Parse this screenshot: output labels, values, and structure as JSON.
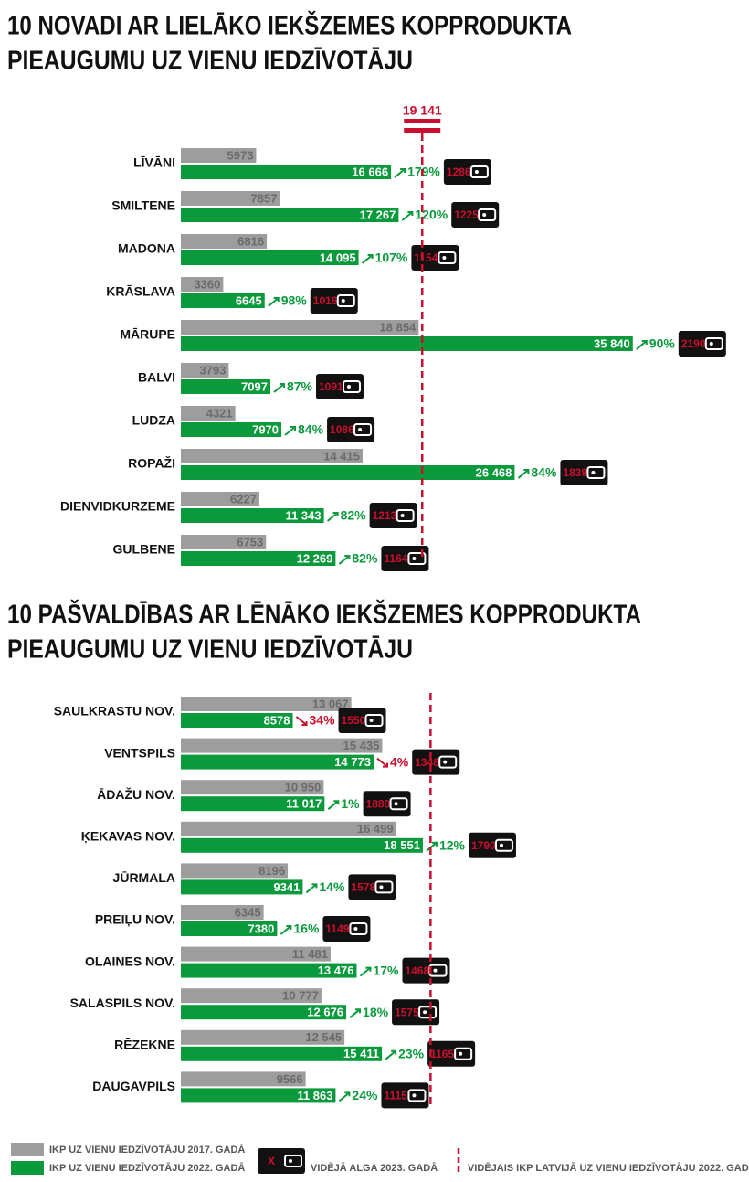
{
  "chart_data": [
    {
      "type": "bar",
      "title": [
        "10 NOVADI AR LIELĀKO IEKŠZEMES KOPPRODUKTA",
        "PIEAUGUMU UZ VIENU IEDZĪVOTĀJU"
      ],
      "categories": [
        "LĪVĀNI",
        "SMILTENE",
        "MADONA",
        "KRĀSLAVA",
        "MĀRUPE",
        "BALVI",
        "LUDZA",
        "ROPAŽI",
        "DIENVIDKURZEME",
        "GULBENE"
      ],
      "series": [
        {
          "name": "IKP UZ VIENU IEDZĪVOTĀJU 2017. GADĀ",
          "color": "#9d9d9d",
          "values": [
            5973,
            7857,
            6816,
            3360,
            18854,
            3793,
            4321,
            14415,
            6227,
            6753
          ],
          "value_labels": [
            "5973",
            "7857",
            "6816",
            "3360",
            "18 854",
            "3793",
            "4321",
            "14 415",
            "6227",
            "6753"
          ]
        },
        {
          "name": "IKP UZ VIENU IEDZĪVOTĀJU 2022. GADĀ",
          "color": "#0a9a3c",
          "values": [
            16666,
            17267,
            14095,
            6645,
            35840,
            7097,
            7970,
            26468,
            11343,
            12269
          ],
          "value_labels": [
            "16 666",
            "17 267",
            "14 095",
            "6645",
            "35 840",
            "7097",
            "7970",
            "26 468",
            "11 343",
            "12 269"
          ]
        }
      ],
      "growth": {
        "values": [
          179,
          120,
          107,
          98,
          90,
          87,
          84,
          84,
          82,
          82
        ],
        "value_labels": [
          "179%",
          "120%",
          "107%",
          "98%",
          "90%",
          "87%",
          "84%",
          "84%",
          "82%",
          "82%"
        ]
      },
      "wages": {
        "values": [
          1286,
          1225,
          1154,
          1016,
          2190,
          1091,
          1086,
          1839,
          1213,
          1164
        ]
      },
      "reference": {
        "value": 19141,
        "label": "19 141"
      },
      "xlim": [
        0,
        36000
      ]
    },
    {
      "type": "bar",
      "title": [
        "10 PAŠVALDĪBAS AR LĒNĀKO IEKŠZEMES KOPPRODUKTA",
        "PIEAUGUMU UZ VIENU IEDZĪVOTĀJU"
      ],
      "categories": [
        "SAULKRASTU NOV.",
        "VENTSPILS",
        "ĀDAŽU NOV.",
        "ĶEKAVAS NOV.",
        "JŪRMALA",
        "PREIĻU NOV.",
        "OLAINES NOV.",
        "SALASPILS NOV.",
        "RĒZEKNE",
        "DAUGAVPILS"
      ],
      "series": [
        {
          "color": "#9d9d9d",
          "values": [
            13067,
            15435,
            10950,
            16499,
            8196,
            6345,
            11481,
            10777,
            12545,
            9566
          ],
          "value_labels": [
            "13 067",
            "15 435",
            "10 950",
            "16 499",
            "8196",
            "6345",
            "11 481",
            "10 777",
            "12 545",
            "9566"
          ]
        },
        {
          "color": "#0a9a3c",
          "values": [
            8578,
            14773,
            11017,
            18551,
            9341,
            7380,
            13476,
            12676,
            15411,
            11863
          ],
          "value_labels": [
            "8578",
            "14 773",
            "11 017",
            "18 551",
            "9341",
            "7380",
            "13 476",
            "12 676",
            "15 411",
            "11 863"
          ]
        }
      ],
      "growth": {
        "values": [
          -34,
          -4,
          1,
          12,
          14,
          16,
          17,
          18,
          23,
          24
        ],
        "value_labels": [
          "34%",
          "4%",
          "1%",
          "12%",
          "14%",
          "16%",
          "17%",
          "18%",
          "23%",
          "24%"
        ]
      },
      "wages": {
        "values": [
          1550,
          1348,
          1889,
          1790,
          1578,
          1149,
          1468,
          1575,
          1165,
          1115
        ]
      },
      "reference": {
        "value": 19141
      },
      "xlim": [
        0,
        34800
      ]
    }
  ],
  "legend": {
    "wage": "VIDĒJĀ ALGA 2023. GADĀ",
    "wage_symbol": "X",
    "reference": "VIDĒJAIS IKP LATVIJĀ UZ VIENU IEDZĪVOTĀJU 2022. GADĀ"
  }
}
